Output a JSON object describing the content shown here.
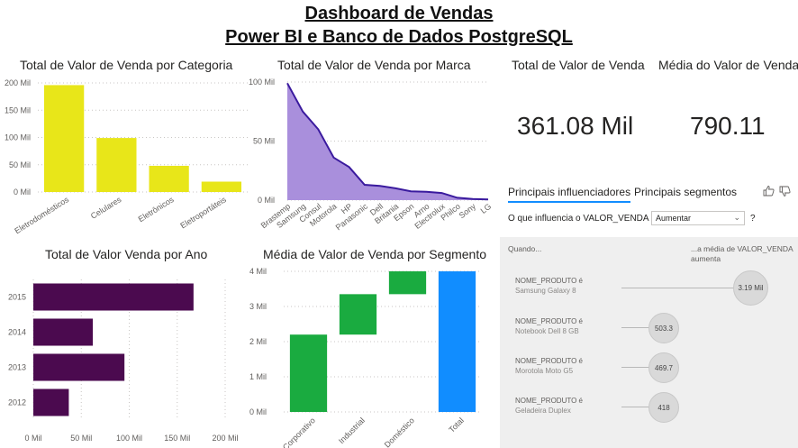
{
  "header": {
    "title_line1": "Dashboard de Vendas",
    "title_line2": "Power BI e Banco de Dados PostgreSQL"
  },
  "colors": {
    "categoria_bar": "#e8e619",
    "marca_area": "#a98fdc",
    "marca_line": "#3a1a9e",
    "ano_bar": "#4b0a4f",
    "segment_increase": "#1aab40",
    "segment_total": "#118dff"
  },
  "cards": {
    "total_title": "Total de Valor de Venda",
    "total_value": "361.08 Mil",
    "media_title": "Média do Valor de Venda",
    "media_value": "790.11"
  },
  "key_influencers": {
    "tab1": "Principais influenciadores",
    "tab2": "Principais segmentos",
    "question": "O que influencia o VALOR_VENDA a",
    "select_value": "Aumentar",
    "question_mark": "?",
    "head_left": "Quando...",
    "head_right_1": "...a média de VALOR_VENDA",
    "head_right_2": "aumenta",
    "rows": [
      {
        "line1": "NOME_PRODUTO é",
        "line2": "Samsung Galaxy 8",
        "value": "3.19 Mil",
        "amount": 3190
      },
      {
        "line1": "NOME_PRODUTO é",
        "line2": "Notebook Dell 8 GB",
        "value": "503.3",
        "amount": 503.3
      },
      {
        "line1": "NOME_PRODUTO é",
        "line2": "Morotola Moto G5",
        "value": "469.7",
        "amount": 469.7
      },
      {
        "line1": "NOME_PRODUTO é",
        "line2": "Geladeira Duplex",
        "value": "418",
        "amount": 418
      }
    ]
  },
  "chart_data": [
    {
      "type": "bar",
      "title": "Total de Valor de Venda por Categoria",
      "categories": [
        "Eletrodomésticos",
        "Celulares",
        "Eletrônicos",
        "Eletroportáteis"
      ],
      "values": [
        196000,
        99000,
        48000,
        19000
      ],
      "ylim": [
        0,
        200000
      ],
      "yticks": [
        0,
        50000,
        100000,
        150000,
        200000
      ],
      "ytick_labels": [
        "0 Mil",
        "50 Mil",
        "100 Mil",
        "150 Mil",
        "200 Mil"
      ],
      "grid": true
    },
    {
      "type": "area",
      "title": "Total de Valor de Venda por Marca",
      "categories": [
        "Brastemp",
        "Samsung",
        "Consul",
        "Motorola",
        "HP",
        "Panasonic",
        "Dell",
        "Britania",
        "Epson",
        "Arno",
        "Electrolux",
        "Philco",
        "Sony",
        "LG"
      ],
      "values": [
        99000,
        75000,
        60000,
        36000,
        28000,
        13000,
        12000,
        10000,
        7500,
        7000,
        6000,
        2000,
        1000,
        500
      ],
      "ylim": [
        0,
        100000
      ],
      "yticks": [
        0,
        50000,
        100000
      ],
      "ytick_labels": [
        "0 Mil",
        "50 Mil",
        "100 Mil"
      ],
      "grid": true
    },
    {
      "type": "bar",
      "orientation": "horizontal",
      "title": "Total de Valor Venda por Ano",
      "categories": [
        "2015",
        "2014",
        "2013",
        "2012"
      ],
      "values": [
        167000,
        62000,
        95000,
        37000
      ],
      "xlim": [
        0,
        200000
      ],
      "xticks": [
        0,
        50000,
        100000,
        150000,
        200000
      ],
      "xtick_labels": [
        "0 Mil",
        "50 Mil",
        "100 Mil",
        "150 Mil",
        "200 Mil"
      ],
      "grid": true
    },
    {
      "type": "bar",
      "subtype": "waterfall",
      "title": "Média de Valor de Venda por Segmento",
      "categories": [
        "Corporativo",
        "Industrial",
        "Doméstico",
        "Total"
      ],
      "values": [
        2200,
        1150,
        650,
        4000
      ],
      "ylim": [
        0,
        4000
      ],
      "yticks": [
        0,
        1000,
        2000,
        3000,
        4000
      ],
      "ytick_labels": [
        "0 Mil",
        "1 Mil",
        "2 Mil",
        "3 Mil",
        "4 Mil"
      ],
      "grid": true
    }
  ]
}
